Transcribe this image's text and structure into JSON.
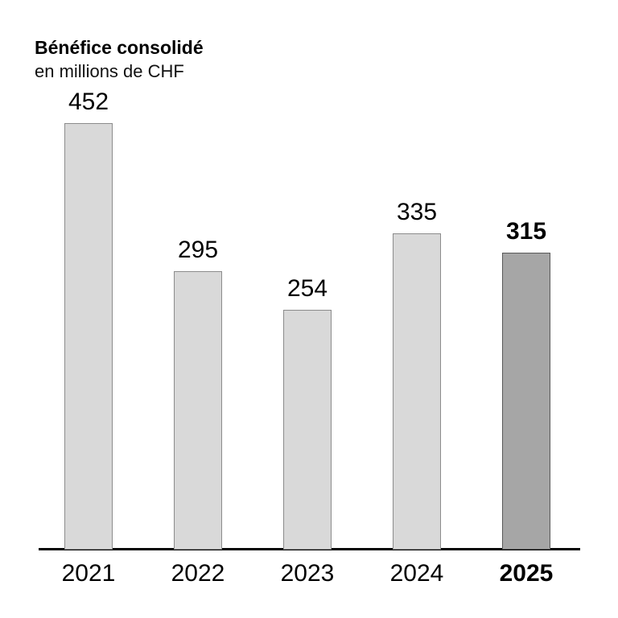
{
  "header": {
    "title": "Bénéfice consolidé",
    "subtitle": "en millions de CHF"
  },
  "chart_data": {
    "type": "bar",
    "title": "Bénéfice consolidé",
    "subtitle": "en millions de CHF",
    "categories": [
      "2021",
      "2022",
      "2023",
      "2024",
      "2025"
    ],
    "values": [
      452,
      295,
      254,
      335,
      315
    ],
    "unit": "millions de CHF",
    "xlabel": "",
    "ylabel": "",
    "ylim": [
      0,
      480
    ],
    "grid": false,
    "legend": "none",
    "y_axis_visible": false,
    "highlight_index": 4,
    "value_labels_visible": true,
    "colors": {
      "bar_fill": "#d9d9d9",
      "bar_border": "#8c8c8c",
      "highlight_fill": "#a6a6a6",
      "highlight_border": "#595959",
      "axis": "#000000",
      "text": "#000000"
    }
  }
}
